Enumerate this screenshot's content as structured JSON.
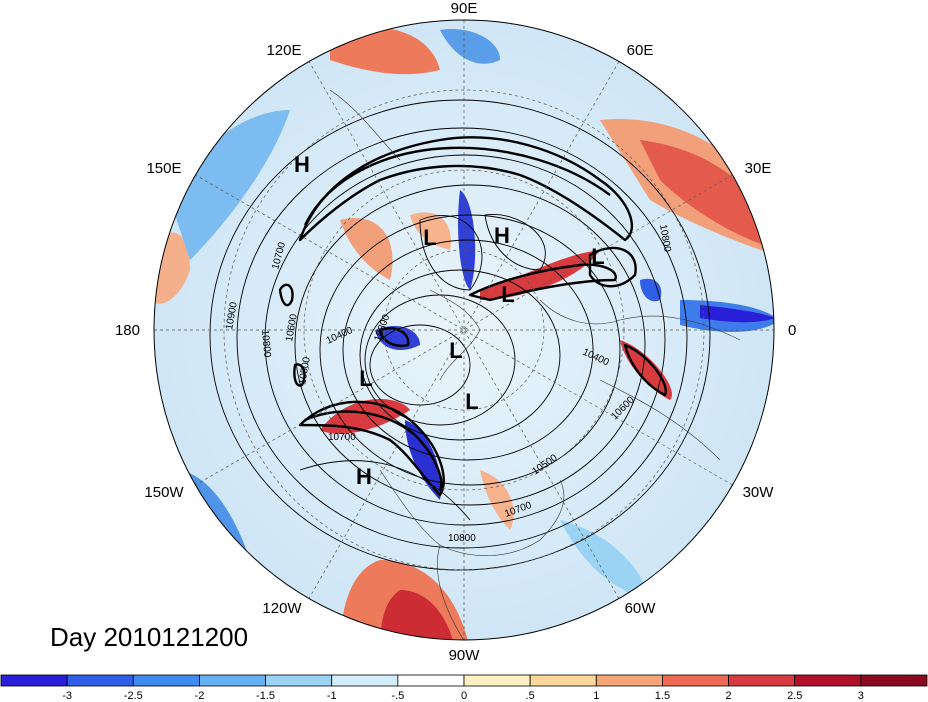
{
  "title": "Day 2010121200",
  "projection": "north-polar-stereographic",
  "longitude_labels": [
    "90E",
    "60E",
    "30E",
    "0",
    "30W",
    "60W",
    "90W",
    "120W",
    "150W",
    "180",
    "150E",
    "120E"
  ],
  "contour_labels": [
    "10900",
    "10800",
    "10700",
    "10600",
    "10500",
    "10400",
    "10300",
    "10700",
    "10800",
    "10700",
    "10600",
    "10500",
    "10400",
    "10800"
  ],
  "centers": [
    {
      "type": "H",
      "label": "H"
    },
    {
      "type": "H",
      "label": "H"
    },
    {
      "type": "H",
      "label": "H"
    },
    {
      "type": "L",
      "label": "L"
    },
    {
      "type": "L",
      "label": "L"
    },
    {
      "type": "L",
      "label": "L"
    },
    {
      "type": "L",
      "label": "L"
    },
    {
      "type": "L",
      "label": "L"
    },
    {
      "type": "L",
      "label": "L"
    }
  ],
  "colorbar": {
    "ticks": [
      "-3",
      "-2.5",
      "-2",
      "-1.5",
      "-1",
      "-.5",
      "0",
      ".5",
      "1",
      "1.5",
      "2",
      "2.5",
      "3"
    ],
    "colors": [
      "#2a1fd8",
      "#2f5fe6",
      "#3f8cee",
      "#64b0f2",
      "#9bd3f5",
      "#d2eefa",
      "#ffffff",
      "#fdf1c4",
      "#fbd79a",
      "#f6a577",
      "#ee6a55",
      "#d83b3f",
      "#b1102a",
      "#8c0820"
    ]
  }
}
